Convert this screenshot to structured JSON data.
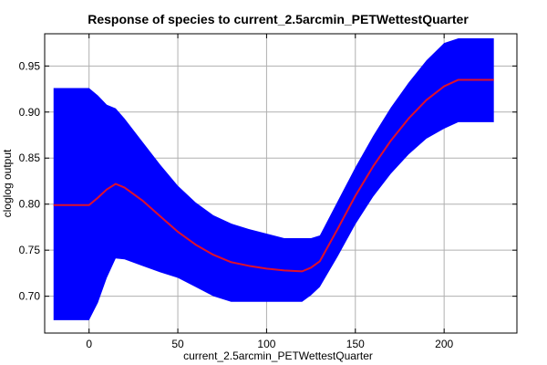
{
  "chart_data": {
    "type": "area",
    "title": "Response of species to current_2.5arcmin_PETWettestQuarter",
    "xlabel": "current_2.5arcmin_PETWettestQuarter",
    "ylabel": "cloglog output",
    "xlim": [
      -25,
      241
    ],
    "ylim": [
      0.66,
      0.985
    ],
    "xticks": [
      0,
      50,
      100,
      150,
      200
    ],
    "yticks": [
      0.7,
      0.75,
      0.8,
      0.85,
      0.9,
      0.95
    ],
    "ytick_labels": [
      "0.70",
      "0.75",
      "0.80",
      "0.85",
      "0.90",
      "0.95"
    ],
    "grid": true,
    "band_color": "#0000ff",
    "line_color": "#e0102a",
    "series": [
      {
        "x": [
          -20,
          0,
          5,
          10,
          15,
          20,
          30,
          40,
          50,
          60,
          70,
          80,
          90,
          100,
          110,
          120,
          125,
          130,
          140,
          150,
          160,
          170,
          180,
          190,
          200,
          208,
          228
        ],
        "mean": [
          0.799,
          0.799,
          0.807,
          0.816,
          0.822,
          0.818,
          0.804,
          0.787,
          0.77,
          0.756,
          0.745,
          0.737,
          0.733,
          0.73,
          0.728,
          0.727,
          0.731,
          0.738,
          0.773,
          0.809,
          0.841,
          0.869,
          0.893,
          0.913,
          0.928,
          0.935,
          0.935
        ],
        "upper": [
          0.926,
          0.926,
          0.918,
          0.908,
          0.904,
          0.893,
          0.868,
          0.843,
          0.82,
          0.802,
          0.788,
          0.779,
          0.773,
          0.768,
          0.763,
          0.763,
          0.763,
          0.766,
          0.803,
          0.84,
          0.874,
          0.905,
          0.932,
          0.956,
          0.975,
          0.98,
          0.98
        ],
        "lower": [
          0.674,
          0.674,
          0.693,
          0.72,
          0.741,
          0.74,
          0.733,
          0.726,
          0.72,
          0.71,
          0.7,
          0.694,
          0.694,
          0.694,
          0.694,
          0.694,
          0.701,
          0.71,
          0.743,
          0.778,
          0.808,
          0.833,
          0.854,
          0.871,
          0.882,
          0.889,
          0.889
        ]
      }
    ]
  }
}
